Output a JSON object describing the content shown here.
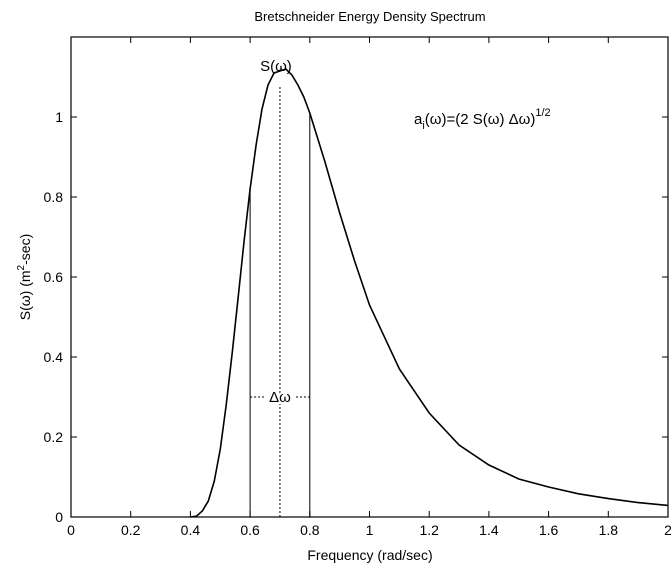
{
  "chart_data": {
    "type": "line",
    "title": "Bretschneider Energy Density Spectrum",
    "xlabel": "Frequency (rad/sec)",
    "ylabel": {
      "pre": "S(ω) (m",
      "sup": "2",
      "post": "-sec)"
    },
    "xlim": [
      0,
      2
    ],
    "ylim": [
      0,
      1.2
    ],
    "xticks": [
      0,
      0.2,
      0.4,
      0.6,
      0.8,
      1,
      1.2,
      1.4,
      1.6,
      1.8,
      2
    ],
    "xtick_labels": [
      "0",
      "0.2",
      "0.4",
      "0.6",
      "0.8",
      "1",
      "1.2",
      "1.4",
      "1.6",
      "1.8",
      "2"
    ],
    "yticks": [
      0,
      0.2,
      0.4,
      0.6,
      0.8,
      1
    ],
    "ytick_labels": [
      "0",
      "0.2",
      "0.4",
      "0.6",
      "0.8",
      "1"
    ],
    "grid": false,
    "legend": "none",
    "series": [
      {
        "x": [
          0.4,
          0.42,
          0.44,
          0.46,
          0.48,
          0.5,
          0.52,
          0.54,
          0.56,
          0.58,
          0.6,
          0.62,
          0.64,
          0.66,
          0.68,
          0.7,
          0.72,
          0.74,
          0.76,
          0.78,
          0.8,
          0.85,
          0.9,
          0.95,
          1.0,
          1.1,
          1.2,
          1.3,
          1.4,
          1.5,
          1.6,
          1.7,
          1.8,
          1.9,
          2.0
        ],
        "y": [
          0.0,
          0.002,
          0.015,
          0.04,
          0.09,
          0.17,
          0.28,
          0.41,
          0.55,
          0.69,
          0.82,
          0.93,
          1.02,
          1.08,
          1.11,
          1.115,
          1.12,
          1.105,
          1.08,
          1.05,
          1.01,
          0.89,
          0.76,
          0.64,
          0.53,
          0.37,
          0.26,
          0.18,
          0.13,
          0.095,
          0.075,
          0.058,
          0.046,
          0.036,
          0.029
        ]
      }
    ],
    "annotations": {
      "peak_label": "S(ω)",
      "delta_label": "Δω",
      "formula": {
        "a": "a",
        "sub_i": "i",
        "mid": "(ω)=(2 S(ω) Δω)",
        "sup": "1/2"
      },
      "band_lines_x": [
        0.6,
        0.8
      ],
      "center_line_x": 0.7,
      "delta_arrow_y": 0.3,
      "peak_label_x": 0.7
    }
  }
}
